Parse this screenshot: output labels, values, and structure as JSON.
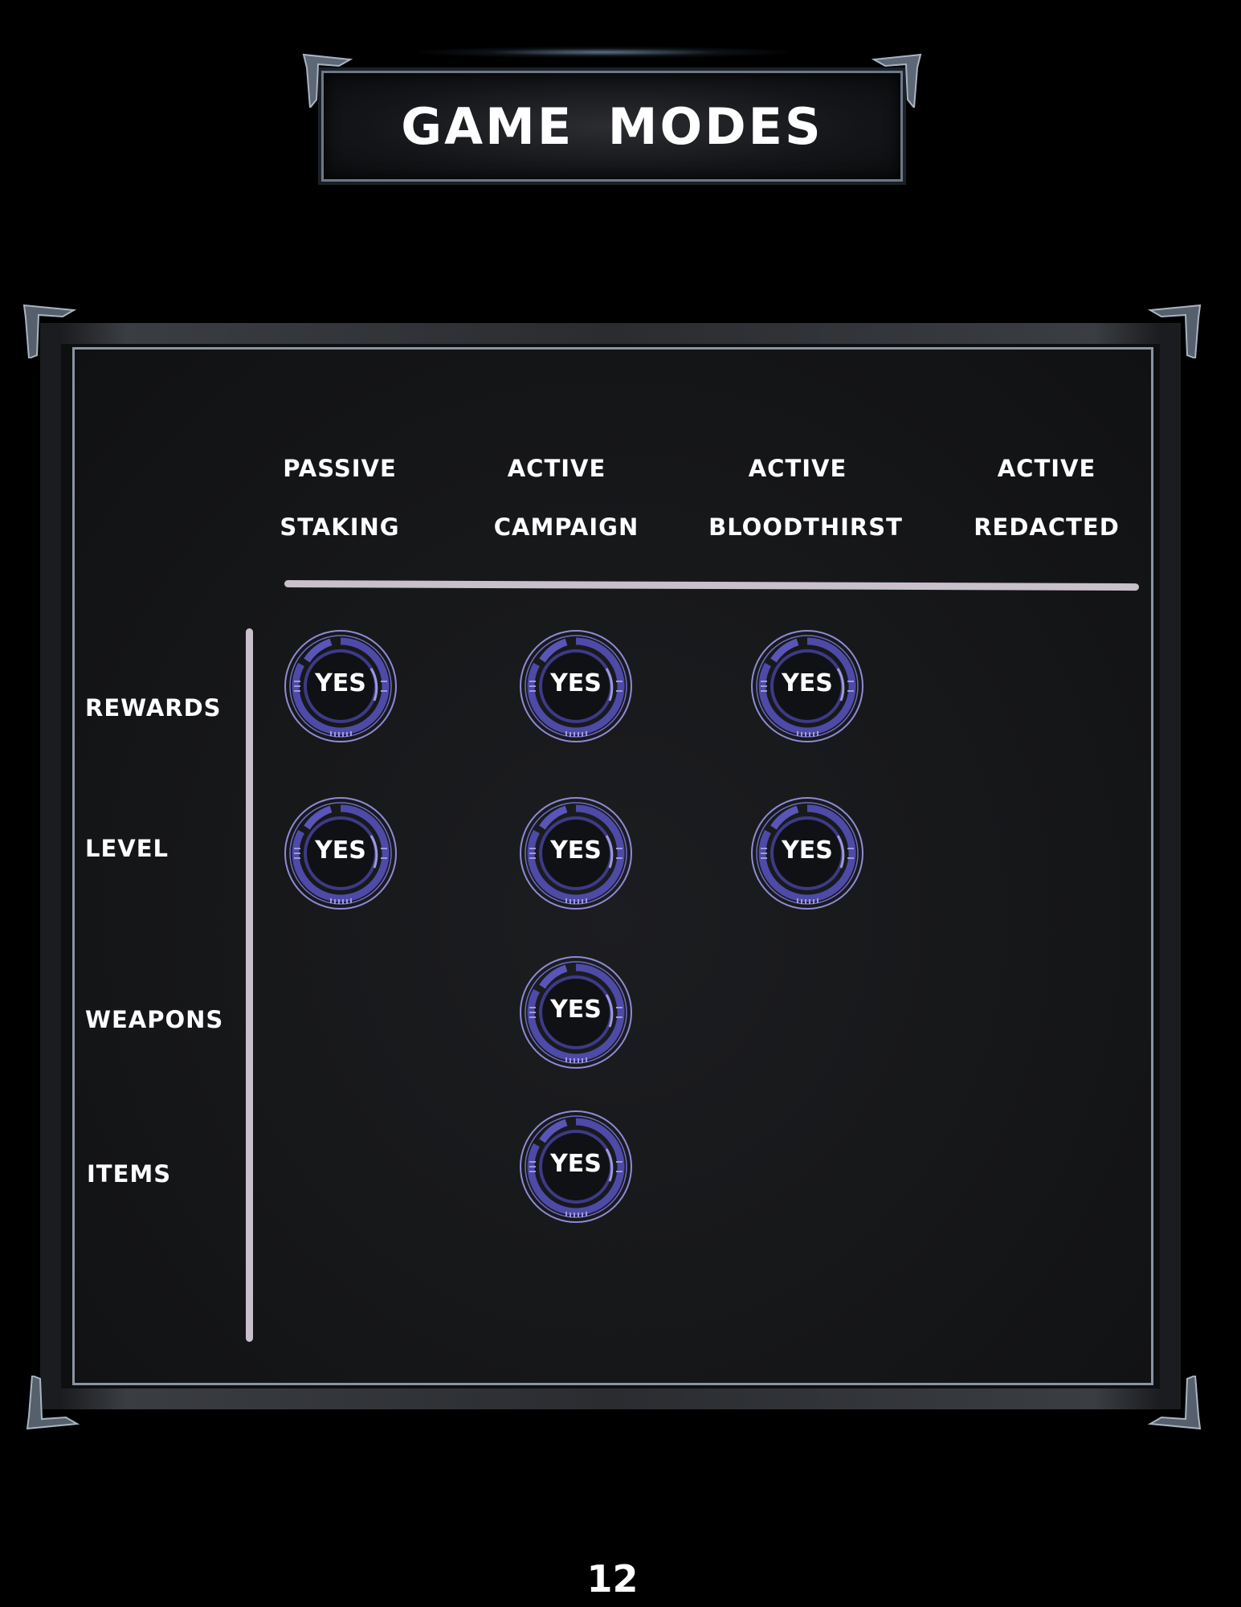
{
  "title": "GAME  MODES",
  "columns": [
    {
      "line1": "PASSIVE",
      "line2": "STAKING"
    },
    {
      "line1": "ACTIVE",
      "line2": "CAMPAIGN"
    },
    {
      "line1": "ACTIVE",
      "line2": "BLOODTHIRST"
    },
    {
      "line1": "ACTIVE",
      "line2": "REDACTED"
    }
  ],
  "rows": [
    {
      "label": "REWARDS",
      "cells": [
        "YES",
        "YES",
        "YES",
        ""
      ]
    },
    {
      "label": "LEVEL",
      "cells": [
        "YES",
        "YES",
        "YES",
        ""
      ]
    },
    {
      "label": "WEAPONS",
      "cells": [
        "",
        "YES",
        "",
        ""
      ]
    },
    {
      "label": "ITEMS",
      "cells": [
        "",
        "YES",
        "",
        ""
      ]
    }
  ],
  "page_number": "12",
  "colors": {
    "background": "#000000",
    "panel": "#161719",
    "badge_accent": "#5a55b8",
    "badge_ring": "#8f8bd4",
    "rule": "#c9c0cc"
  },
  "icons": {
    "badge": "hud-ring-icon",
    "corner": "metal-corner-ornament-icon"
  }
}
